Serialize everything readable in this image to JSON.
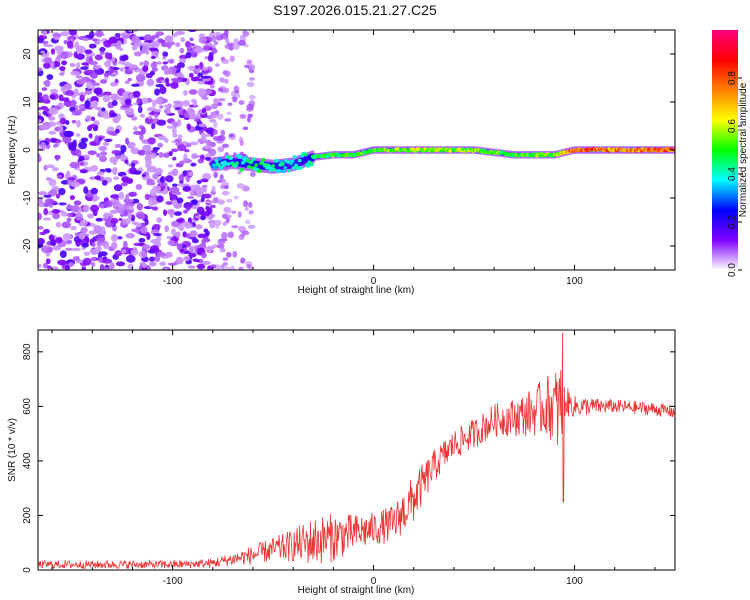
{
  "page": {
    "title": "S197.2026.015.21.27.C25"
  },
  "chart_data": [
    {
      "type": "heatmap",
      "xlabel": "Height of straight line (km)",
      "ylabel": "Frequency (Hz)",
      "xlim": [
        -167,
        150
      ],
      "ylim": [
        -25,
        25
      ],
      "xticks": [
        -100,
        0,
        100
      ],
      "yticks": [
        -20,
        -10,
        0,
        10,
        20
      ],
      "xtick_labels": [
        "-100",
        "0",
        "100"
      ],
      "ytick_labels": [
        "-20",
        "-10",
        "0",
        "10",
        "20"
      ],
      "colorbar": {
        "label": "Normalized spectral amplitude",
        "range": [
          0,
          1
        ],
        "ticks": [
          "0.0",
          "0.2",
          "0.4",
          "0.6",
          "0.8"
        ],
        "tick_values": [
          0,
          0.2,
          0.4,
          0.6,
          0.8
        ],
        "colors": [
          "#ffffff",
          "#8000ff",
          "#0000ff",
          "#00ffff",
          "#00ff00",
          "#ffff00",
          "#ff8000",
          "#ff0000",
          "#ff0080"
        ]
      },
      "ridge": {
        "x": [
          -80,
          -70,
          -60,
          -50,
          -40,
          -30,
          -20,
          -10,
          0,
          10,
          20,
          30,
          40,
          50,
          60,
          70,
          80,
          90,
          100,
          110,
          120,
          130,
          140,
          150
        ],
        "frequency": [
          -3,
          -2.5,
          -3,
          -3.5,
          -3,
          -1.5,
          -1,
          -1,
          0,
          0,
          0,
          0,
          0,
          0,
          -0.5,
          -1,
          -1,
          -1,
          0,
          0,
          0,
          0,
          0,
          0
        ],
        "amplitude": [
          0.4,
          0.45,
          0.5,
          0.45,
          0.4,
          0.5,
          0.55,
          0.55,
          0.6,
          0.6,
          0.65,
          0.65,
          0.6,
          0.6,
          0.6,
          0.55,
          0.6,
          0.6,
          0.9,
          0.9,
          0.8,
          0.85,
          0.85,
          0.9
        ]
      },
      "noise_region_x": [
        -167,
        -80
      ]
    },
    {
      "type": "line",
      "xlabel": "Height of straight line (km)",
      "ylabel": "SNR (10 * v/v)",
      "xlim": [
        -167,
        150
      ],
      "ylim": [
        0,
        880
      ],
      "xticks": [
        -100,
        0,
        100
      ],
      "yticks": [
        0,
        200,
        400,
        600,
        800
      ],
      "xtick_labels": [
        "-100",
        "0",
        "100"
      ],
      "ytick_labels": [
        "0",
        "200",
        "400",
        "600",
        "800"
      ],
      "series_color": "#ee3333",
      "x": [
        -167,
        -140,
        -120,
        -100,
        -90,
        -80,
        -70,
        -60,
        -50,
        -40,
        -30,
        -20,
        -10,
        0,
        10,
        20,
        30,
        40,
        50,
        60,
        70,
        80,
        85,
        90,
        93,
        95,
        100,
        110,
        120,
        130,
        140,
        150
      ],
      "y": [
        20,
        20,
        20,
        20,
        22,
        25,
        40,
        55,
        75,
        90,
        105,
        120,
        135,
        150,
        170,
        260,
        380,
        460,
        500,
        550,
        560,
        580,
        600,
        600,
        580,
        620,
        600,
        600,
        600,
        595,
        590,
        580
      ],
      "noise_amplitude": [
        15,
        15,
        15,
        15,
        15,
        18,
        25,
        35,
        45,
        60,
        90,
        90,
        70,
        60,
        70,
        90,
        60,
        55,
        55,
        60,
        70,
        90,
        110,
        130,
        200,
        60,
        40,
        30,
        25,
        25,
        25,
        25
      ],
      "dip": {
        "x": 94.5,
        "y": 250
      },
      "spike": {
        "x": 94,
        "y": 870
      }
    }
  ]
}
